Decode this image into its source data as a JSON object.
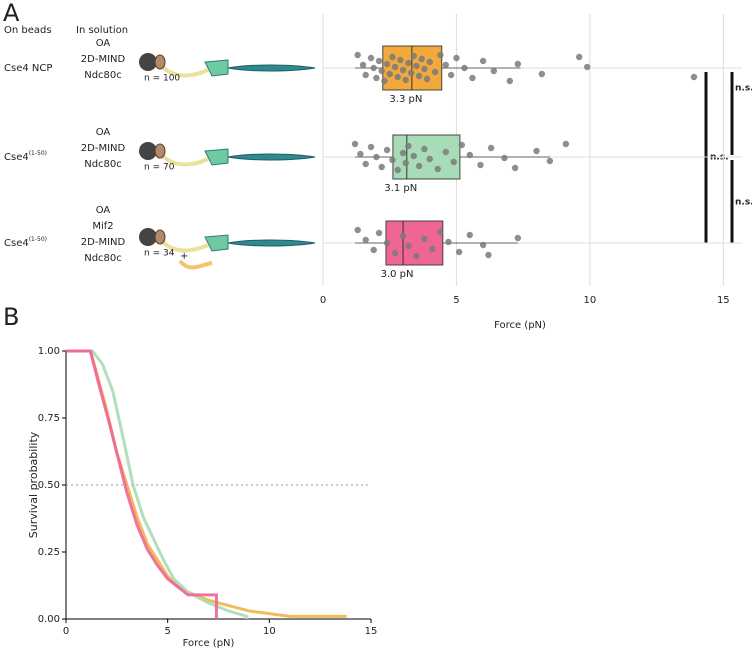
{
  "chart_data": [
    {
      "type": "box",
      "panel": "A",
      "column_headers": [
        "On beads",
        "In solution"
      ],
      "rows": [
        {
          "bead": "Cse4 NCP",
          "solution": [
            "OA",
            "2D-MIND",
            "Ndc80c"
          ],
          "n_label": "n = 100"
        },
        {
          "bead": "Cse4",
          "bead_sup": "(1-50)",
          "solution": [
            "OA",
            "2D-MIND",
            "Ndc80c"
          ],
          "n_label": "n = 70"
        },
        {
          "bead": "Cse4",
          "bead_sup": "(1-50)",
          "solution": [
            "OA",
            "Mif2",
            "2D-MIND",
            "Ndc80c"
          ],
          "n_label": "n = 34",
          "extra": "+"
        }
      ],
      "boxes": [
        {
          "color": "#f2a93b",
          "q1": 2.24,
          "median": 3.33,
          "q3": 4.45,
          "whisker": [
            1.2,
            7.4
          ],
          "value_label": "3.3 pN",
          "points": [
            1.3,
            1.5,
            1.6,
            1.8,
            1.9,
            2.0,
            2.1,
            2.2,
            2.3,
            2.4,
            2.5,
            2.6,
            2.7,
            2.8,
            2.9,
            3.0,
            3.1,
            3.2,
            3.3,
            3.4,
            3.5,
            3.6,
            3.7,
            3.8,
            3.9,
            4.0,
            4.2,
            4.4,
            4.6,
            4.8,
            5.0,
            5.3,
            5.6,
            6.0,
            6.4,
            7.0,
            7.3,
            8.2,
            9.6,
            9.9,
            13.9
          ]
        },
        {
          "color": "#a8dcb6",
          "q1": 2.62,
          "median": 3.14,
          "q3": 5.13,
          "whisker": [
            1.2,
            8.5
          ],
          "value_label": "3.1 pN",
          "points": [
            1.2,
            1.4,
            1.6,
            1.8,
            2.0,
            2.2,
            2.4,
            2.6,
            2.8,
            3.0,
            3.1,
            3.2,
            3.4,
            3.6,
            3.8,
            4.0,
            4.3,
            4.6,
            4.9,
            5.2,
            5.5,
            5.9,
            6.3,
            6.8,
            7.2,
            8.0,
            8.5,
            9.1
          ]
        },
        {
          "color": "#ee6596",
          "q1": 2.36,
          "median": 3.0,
          "q3": 4.49,
          "whisker": [
            1.2,
            7.3
          ],
          "value_label": "3.0 pN",
          "points": [
            1.3,
            1.6,
            1.9,
            2.1,
            2.4,
            2.7,
            3.0,
            3.2,
            3.5,
            3.8,
            4.1,
            4.4,
            4.7,
            5.1,
            5.5,
            6.0,
            6.2,
            7.3
          ]
        }
      ],
      "significance": [
        "n.s.",
        "n.s.",
        "n.s."
      ],
      "xlabel": "Force (pN)",
      "xlim": [
        0,
        15.7
      ],
      "xticks": [
        0,
        5,
        10,
        15
      ],
      "grid": true
    },
    {
      "type": "line",
      "panel": "B",
      "xlabel": "Force (pN)",
      "ylabel": "Survival probability",
      "xlim": [
        0,
        15
      ],
      "xticks": [
        0,
        5,
        10,
        15
      ],
      "ylim": [
        0,
        1
      ],
      "yticks": [
        {
          "value": 0,
          "label": "0.00"
        },
        {
          "value": 0.25,
          "label": "0.25"
        },
        {
          "value": 0.5,
          "label": "0.50"
        },
        {
          "value": 0.75,
          "label": "0.75"
        },
        {
          "value": 1,
          "label": "1.00"
        }
      ],
      "reference_line": 0.5,
      "series": [
        {
          "color": "#f2b24a",
          "x": [
            0,
            1.2,
            1.5,
            2,
            2.5,
            3,
            3.5,
            4,
            4.5,
            5,
            5.5,
            6,
            7,
            8,
            9,
            10,
            11,
            13.8
          ],
          "values": [
            1,
            1,
            0.92,
            0.78,
            0.62,
            0.5,
            0.38,
            0.28,
            0.22,
            0.16,
            0.12,
            0.1,
            0.07,
            0.05,
            0.03,
            0.02,
            0.01,
            0.01
          ]
        },
        {
          "color": "#a8dcb6",
          "x": [
            0,
            1.3,
            1.8,
            2.3,
            2.8,
            3.3,
            3.8,
            4.3,
            4.8,
            5.3,
            6,
            7,
            8,
            8.9,
            8.9
          ],
          "values": [
            1,
            1,
            0.95,
            0.85,
            0.68,
            0.5,
            0.38,
            0.3,
            0.22,
            0.15,
            0.1,
            0.06,
            0.03,
            0.01,
            0
          ]
        },
        {
          "color": "#ee6596",
          "x": [
            0,
            1.2,
            1.6,
            2.1,
            2.6,
            3,
            3.5,
            4,
            4.5,
            5,
            5.5,
            6,
            7.4,
            7.4
          ],
          "values": [
            1,
            1,
            0.88,
            0.74,
            0.59,
            0.47,
            0.35,
            0.26,
            0.2,
            0.15,
            0.12,
            0.09,
            0.09,
            0
          ]
        }
      ]
    }
  ]
}
